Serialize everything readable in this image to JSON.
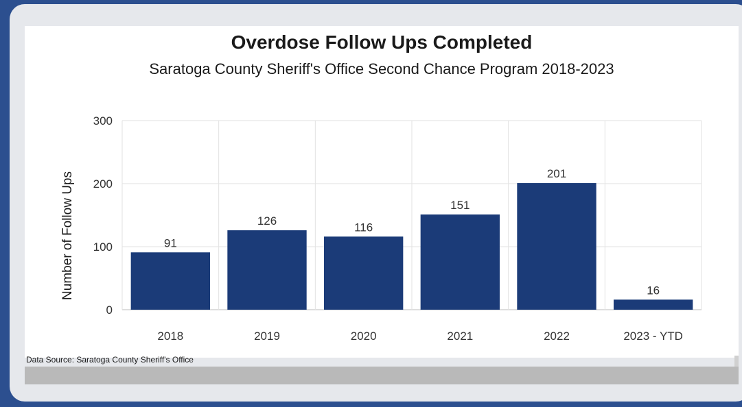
{
  "chart_data": {
    "type": "bar",
    "title": "Overdose Follow Ups Completed",
    "subtitle": "Saratoga County Sheriff's Office Second Chance Program 2018-2023",
    "xlabel": "",
    "ylabel": "Number of Follow Ups",
    "categories": [
      "2018",
      "2019",
      "2020",
      "2021",
      "2022",
      "2023 - YTD"
    ],
    "values": [
      91,
      126,
      116,
      151,
      201,
      16
    ],
    "ylim": [
      0,
      300
    ],
    "yticks": [
      "0",
      "100",
      "200",
      "300"
    ],
    "bar_color": "#1b3b78",
    "grid": true,
    "legend": "none"
  },
  "footer": {
    "source": "Data Source: Saratoga County Sheriff's Office"
  }
}
